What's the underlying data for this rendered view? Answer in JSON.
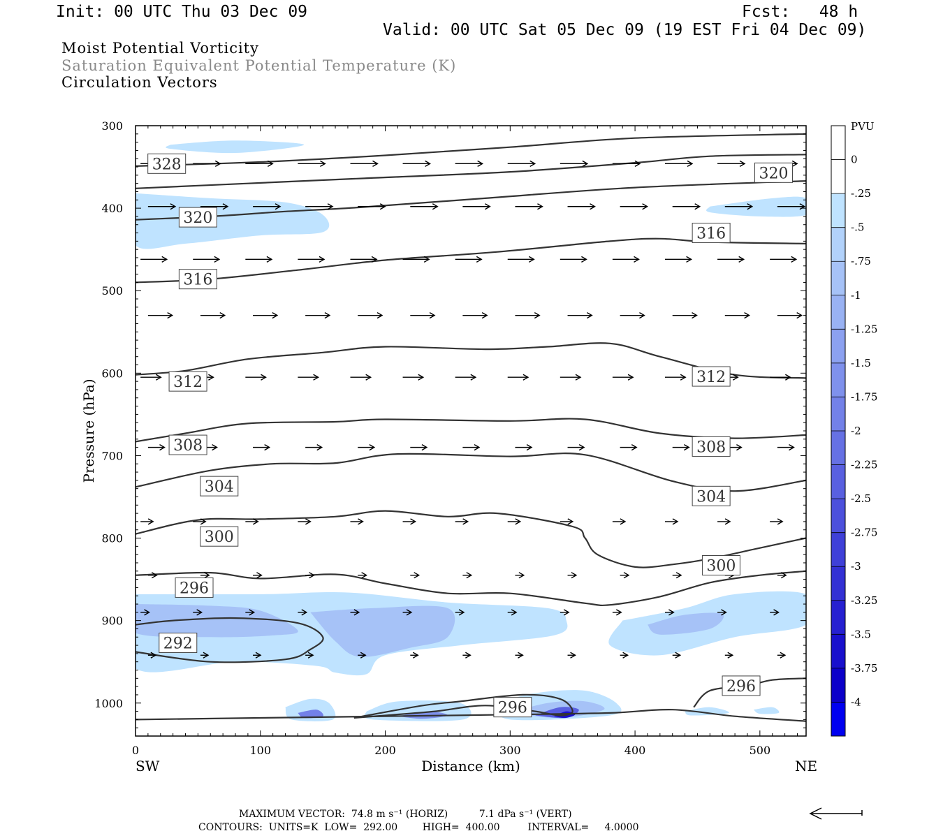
{
  "header": {
    "init": "Init: 00 UTC Thu 03 Dec 09",
    "fcst": "Fcst:   48 h",
    "valid": "Valid: 00 UTC Sat 05 Dec 09 (19 EST Fri 04 Dec 09)",
    "field1": "Moist Potential Vorticity",
    "field2": "Saturation Equivalent Potential Temperature (K)",
    "field3": "Circulation Vectors"
  },
  "colors": {
    "field2": "#8a8a8a",
    "contour": "#333333",
    "light_fill": "#bfe3ff"
  },
  "chart_data": {
    "type": "contour-cross-section",
    "xlabel": "Distance (km)",
    "ylabel": "Pressure (hPa)",
    "xlim": [
      0,
      537
    ],
    "ylim": [
      1040,
      300
    ],
    "x_ticks": [
      0,
      100,
      200,
      300,
      400,
      500
    ],
    "y_ticks": [
      300,
      400,
      500,
      600,
      700,
      800,
      900,
      1000
    ],
    "x_end_labels": {
      "left": "SW",
      "right": "NE"
    },
    "legend": {
      "unit": "PVU",
      "labels": [
        "0",
        "-.25",
        "-.5",
        "-.75",
        "-1",
        "-1.25",
        "-1.5",
        "-1.75",
        "-2",
        "-2.25",
        "-2.5",
        "-2.75",
        "-3",
        "-3.25",
        "-3.5",
        "-3.75",
        "-4"
      ],
      "colors": [
        "#ffffff",
        "#ffffff",
        "#bfe3ff",
        "#b2d2fb",
        "#a6c2f7",
        "#99b2f3",
        "#8ca1f0",
        "#7f91ec",
        "#7381e8",
        "#6671e4",
        "#5960e0",
        "#4c50dc",
        "#3f40d8",
        "#3330d4",
        "#2620d1",
        "#1910cd",
        "#0c00c9",
        "#0000f0"
      ]
    },
    "contour_labels": [
      {
        "text": "328",
        "x": 25,
        "y": 346
      },
      {
        "text": "320",
        "x": 50,
        "y": 411
      },
      {
        "text": "320",
        "x": 511,
        "y": 357
      },
      {
        "text": "316",
        "x": 50,
        "y": 486
      },
      {
        "text": "316",
        "x": 461,
        "y": 430
      },
      {
        "text": "312",
        "x": 42,
        "y": 610
      },
      {
        "text": "312",
        "x": 461,
        "y": 604
      },
      {
        "text": "308",
        "x": 42,
        "y": 687
      },
      {
        "text": "308",
        "x": 461,
        "y": 689
      },
      {
        "text": "304",
        "x": 67,
        "y": 737
      },
      {
        "text": "304",
        "x": 461,
        "y": 749
      },
      {
        "text": "300",
        "x": 67,
        "y": 798
      },
      {
        "text": "300",
        "x": 469,
        "y": 833
      },
      {
        "text": "296",
        "x": 47,
        "y": 860
      },
      {
        "text": "296",
        "x": 302,
        "y": 1005
      },
      {
        "text": "296",
        "x": 485,
        "y": 979
      },
      {
        "text": "292",
        "x": 34,
        "y": 927
      }
    ],
    "contours": [
      {
        "x": [
          0,
          90,
          180,
          300,
          400,
          460,
          537
        ],
        "y": [
          376,
          370,
          364,
          356,
          345,
          337,
          335
        ]
      },
      {
        "x": [
          0,
          100,
          200,
          300,
          400,
          537
        ],
        "y": [
          349,
          344,
          336,
          326,
          315,
          310
        ]
      },
      {
        "x": [
          0,
          60,
          120,
          180,
          280,
          400,
          537
        ],
        "y": [
          414,
          410,
          404,
          399,
          388,
          375,
          367
        ]
      },
      {
        "x": [
          0,
          60,
          130,
          200,
          290,
          380,
          420,
          460,
          537
        ],
        "y": [
          490,
          486,
          475,
          463,
          453,
          440,
          437,
          441,
          443
        ]
      },
      {
        "x": [
          0,
          40,
          90,
          150,
          200,
          280,
          330,
          380,
          420,
          480,
          537
        ],
        "y": [
          602,
          597,
          583,
          575,
          568,
          571,
          568,
          564,
          580,
          602,
          606
        ]
      },
      {
        "x": [
          0,
          40,
          90,
          160,
          200,
          300,
          360,
          420,
          480,
          537
        ],
        "y": [
          683,
          673,
          661,
          659,
          656,
          658,
          656,
          673,
          679,
          675
        ]
      },
      {
        "x": [
          0,
          60,
          110,
          160,
          210,
          300,
          360,
          430,
          480,
          537
        ],
        "y": [
          738,
          718,
          710,
          709,
          698,
          701,
          699,
          731,
          743,
          730
        ]
      },
      {
        "x": [
          0,
          50,
          100,
          160,
          200,
          250,
          290,
          350,
          360,
          370,
          400,
          430,
          460,
          500,
          537
        ],
        "y": [
          795,
          778,
          777,
          774,
          767,
          774,
          770,
          786,
          800,
          820,
          835,
          832,
          825,
          812,
          800
        ]
      },
      {
        "x": [
          0,
          60,
          100,
          160,
          200,
          250,
          300,
          360,
          380,
          420,
          460,
          500,
          537
        ],
        "y": [
          845,
          842,
          849,
          844,
          855,
          867,
          867,
          879,
          881,
          871,
          854,
          845,
          840
        ]
      },
      {
        "x": [
          0,
          30,
          80,
          130,
          150,
          140,
          120,
          60,
          0
        ],
        "y": [
          905,
          900,
          897,
          903,
          920,
          935,
          947,
          950,
          938
        ]
      },
      {
        "x": [
          175,
          230,
          260,
          310,
          340,
          350,
          340,
          320,
          280,
          240,
          200,
          175
        ],
        "y": [
          1018,
          1003,
          998,
          990,
          995,
          1010,
          1015,
          1010,
          1003,
          1010,
          1015,
          1018
        ]
      },
      {
        "x": [
          447,
          460,
          490,
          510,
          537,
          537
        ],
        "y": [
          1005,
          985,
          979,
          972,
          970,
          970
        ]
      },
      {
        "x": [
          0,
          100,
          200,
          300,
          380,
          430,
          480,
          537
        ],
        "y": [
          1020,
          1018,
          1016,
          1014,
          1012,
          1008,
          1016,
          1022
        ]
      }
    ],
    "pv_regions": [
      {
        "color": "#bfe3ff",
        "pts": [
          [
            28,
            323
          ],
          [
            80,
            318
          ],
          [
            135,
            323
          ],
          [
            80,
            333
          ],
          [
            28,
            328
          ]
        ]
      },
      {
        "color": "#bfe3ff",
        "pts": [
          [
            0,
            382
          ],
          [
            60,
            388
          ],
          [
            120,
            393
          ],
          [
            150,
            408
          ],
          [
            150,
            429
          ],
          [
            100,
            433
          ],
          [
            40,
            443
          ],
          [
            0,
            445
          ]
        ]
      },
      {
        "color": "#bfe3ff",
        "pts": [
          [
            460,
            398
          ],
          [
            510,
            388
          ],
          [
            537,
            388
          ],
          [
            537,
            408
          ],
          [
            500,
            410
          ],
          [
            460,
            405
          ]
        ]
      },
      {
        "color": "#bfe3ff",
        "pts": [
          [
            0,
            868
          ],
          [
            100,
            868
          ],
          [
            170,
            866
          ],
          [
            250,
            878
          ],
          [
            330,
            885
          ],
          [
            345,
            900
          ],
          [
            335,
            918
          ],
          [
            260,
            930
          ],
          [
            200,
            942
          ],
          [
            185,
            965
          ],
          [
            160,
            963
          ],
          [
            145,
            955
          ],
          [
            80,
            950
          ],
          [
            0,
            958
          ]
        ]
      },
      {
        "color": "#a6c2f7",
        "pts": [
          [
            0,
            880
          ],
          [
            60,
            882
          ],
          [
            100,
            888
          ],
          [
            130,
            912
          ],
          [
            110,
            918
          ],
          [
            60,
            920
          ],
          [
            0,
            915
          ]
        ]
      },
      {
        "color": "#a6c2f7",
        "pts": [
          [
            140,
            890
          ],
          [
            190,
            885
          ],
          [
            250,
            885
          ],
          [
            250,
            920
          ],
          [
            220,
            933
          ],
          [
            180,
            944
          ],
          [
            160,
            925
          ]
        ]
      },
      {
        "color": "#bfe3ff",
        "pts": [
          [
            390,
            900
          ],
          [
            440,
            885
          ],
          [
            480,
            868
          ],
          [
            537,
            868
          ],
          [
            537,
            905
          ],
          [
            480,
            920
          ],
          [
            420,
            942
          ],
          [
            380,
            930
          ]
        ]
      },
      {
        "color": "#a6c2f7",
        "pts": [
          [
            410,
            905
          ],
          [
            440,
            893
          ],
          [
            470,
            892
          ],
          [
            460,
            910
          ],
          [
            420,
            917
          ]
        ]
      },
      {
        "color": "#bfe3ff",
        "pts": [
          [
            120,
            1005
          ],
          [
            140,
            995
          ],
          [
            155,
            1000
          ],
          [
            158,
            1020
          ],
          [
            125,
            1020
          ]
        ]
      },
      {
        "color": "#bfe3ff",
        "pts": [
          [
            185,
            1010
          ],
          [
            210,
            998
          ],
          [
            260,
            1000
          ],
          [
            262,
            1020
          ],
          [
            190,
            1020
          ]
        ]
      },
      {
        "color": "#bfe3ff",
        "pts": [
          [
            290,
            1000
          ],
          [
            320,
            988
          ],
          [
            360,
            985
          ],
          [
            385,
            1000
          ],
          [
            380,
            1015
          ],
          [
            300,
            1020
          ]
        ]
      },
      {
        "color": "#a6c2f7",
        "pts": [
          [
            300,
            1012
          ],
          [
            330,
            1000
          ],
          [
            360,
            998
          ],
          [
            375,
            1008
          ],
          [
            340,
            1018
          ]
        ]
      },
      {
        "color": "#5960e0",
        "pts": [
          [
            320,
            1015
          ],
          [
            340,
            1005
          ],
          [
            355,
            1008
          ],
          [
            345,
            1018
          ]
        ]
      },
      {
        "color": "#1910cd",
        "pts": [
          [
            335,
            1016
          ],
          [
            345,
            1010
          ],
          [
            352,
            1014
          ],
          [
            344,
            1018
          ]
        ]
      },
      {
        "color": "#7f91ec",
        "pts": [
          [
            210,
            1016
          ],
          [
            235,
            1010
          ],
          [
            250,
            1015
          ],
          [
            230,
            1019
          ]
        ]
      },
      {
        "color": "#7381e8",
        "pts": [
          [
            130,
            1012
          ],
          [
            145,
            1008
          ],
          [
            150,
            1016
          ],
          [
            135,
            1018
          ]
        ]
      },
      {
        "color": "#bfe3ff",
        "pts": [
          [
            440,
            1010
          ],
          [
            460,
            1005
          ],
          [
            475,
            1012
          ],
          [
            445,
            1015
          ]
        ]
      },
      {
        "color": "#bfe3ff",
        "pts": [
          [
            495,
            1008
          ],
          [
            510,
            1005
          ],
          [
            515,
            1012
          ],
          [
            500,
            1013
          ]
        ]
      }
    ],
    "vector_rows": [
      {
        "p": 346,
        "len": 25
      },
      {
        "p": 398,
        "len": 25
      },
      {
        "p": 462,
        "len": 24
      },
      {
        "p": 530,
        "len": 22
      },
      {
        "p": 605,
        "len": 18
      },
      {
        "p": 690,
        "len": 14
      },
      {
        "p": 780,
        "len": 10
      },
      {
        "p": 845,
        "len": 6
      },
      {
        "p": 890,
        "len": 6
      },
      {
        "p": 942,
        "len": 5
      }
    ],
    "vector_x_spacing": 42,
    "footer": {
      "max_vector": "MAXIMUM VECTOR:  74.8 m s⁻¹ (HORIZ)          7.1 dPa s⁻¹ (VERT)",
      "contours": "CONTOURS:  UNITS=K  LOW=  292.00        HIGH=  400.00         INTERVAL=     4.0000"
    }
  }
}
